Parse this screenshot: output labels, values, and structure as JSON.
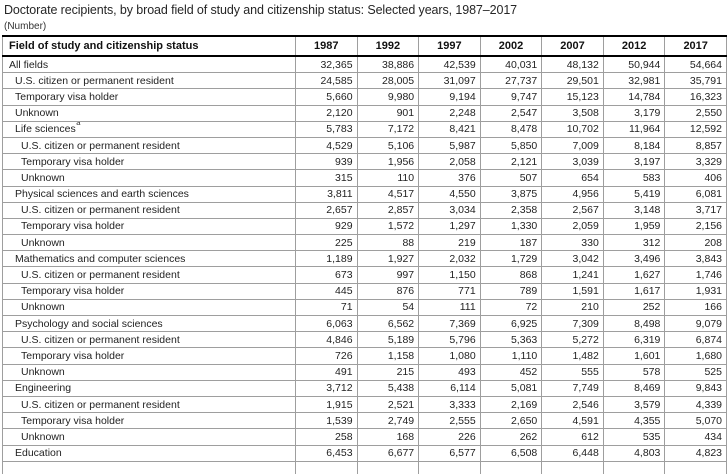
{
  "title": "Doctorate recipients, by broad field of study and citizenship status: Selected years, 1987–2017",
  "unit_label": "(Number)",
  "colors": {
    "header_border": "#000000",
    "grid_line": "#9e9e9e",
    "text": "#1f1f1f",
    "background": "#ffffff"
  },
  "table": {
    "header": [
      "Field of study and citizenship status",
      "1987",
      "1992",
      "1997",
      "2002",
      "2007",
      "2012",
      "2017"
    ],
    "rows": [
      {
        "label": "All fields",
        "indent": 0,
        "footnote_marker": "",
        "values": [
          "32,365",
          "38,886",
          "42,539",
          "40,031",
          "48,132",
          "50,944",
          "54,664"
        ]
      },
      {
        "label": "U.S. citizen or permanent resident",
        "indent": 1,
        "footnote_marker": "",
        "values": [
          "24,585",
          "28,005",
          "31,097",
          "27,737",
          "29,501",
          "32,981",
          "35,791"
        ]
      },
      {
        "label": "Temporary visa holder",
        "indent": 1,
        "footnote_marker": "",
        "values": [
          "5,660",
          "9,980",
          "9,194",
          "9,747",
          "15,123",
          "14,784",
          "16,323"
        ]
      },
      {
        "label": "Unknown",
        "indent": 1,
        "footnote_marker": "",
        "values": [
          "2,120",
          "901",
          "2,248",
          "2,547",
          "3,508",
          "3,179",
          "2,550"
        ]
      },
      {
        "label": "Life sciences",
        "indent": 1,
        "footnote_marker": "a",
        "values": [
          "5,783",
          "7,172",
          "8,421",
          "8,478",
          "10,702",
          "11,964",
          "12,592"
        ]
      },
      {
        "label": "U.S. citizen or permanent resident",
        "indent": 2,
        "footnote_marker": "",
        "values": [
          "4,529",
          "5,106",
          "5,987",
          "5,850",
          "7,009",
          "8,184",
          "8,857"
        ]
      },
      {
        "label": "Temporary visa holder",
        "indent": 2,
        "footnote_marker": "",
        "values": [
          "939",
          "1,956",
          "2,058",
          "2,121",
          "3,039",
          "3,197",
          "3,329"
        ]
      },
      {
        "label": "Unknown",
        "indent": 2,
        "footnote_marker": "",
        "values": [
          "315",
          "110",
          "376",
          "507",
          "654",
          "583",
          "406"
        ]
      },
      {
        "label": "Physical sciences and earth sciences",
        "indent": 1,
        "footnote_marker": "",
        "values": [
          "3,811",
          "4,517",
          "4,550",
          "3,875",
          "4,956",
          "5,419",
          "6,081"
        ]
      },
      {
        "label": "U.S. citizen or permanent resident",
        "indent": 2,
        "footnote_marker": "",
        "values": [
          "2,657",
          "2,857",
          "3,034",
          "2,358",
          "2,567",
          "3,148",
          "3,717"
        ]
      },
      {
        "label": "Temporary visa holder",
        "indent": 2,
        "footnote_marker": "",
        "values": [
          "929",
          "1,572",
          "1,297",
          "1,330",
          "2,059",
          "1,959",
          "2,156"
        ]
      },
      {
        "label": "Unknown",
        "indent": 2,
        "footnote_marker": "",
        "values": [
          "225",
          "88",
          "219",
          "187",
          "330",
          "312",
          "208"
        ]
      },
      {
        "label": "Mathematics and computer sciences",
        "indent": 1,
        "footnote_marker": "",
        "values": [
          "1,189",
          "1,927",
          "2,032",
          "1,729",
          "3,042",
          "3,496",
          "3,843"
        ]
      },
      {
        "label": "U.S. citizen or permanent resident",
        "indent": 2,
        "footnote_marker": "",
        "values": [
          "673",
          "997",
          "1,150",
          "868",
          "1,241",
          "1,627",
          "1,746"
        ]
      },
      {
        "label": "Temporary visa holder",
        "indent": 2,
        "footnote_marker": "",
        "values": [
          "445",
          "876",
          "771",
          "789",
          "1,591",
          "1,617",
          "1,931"
        ]
      },
      {
        "label": "Unknown",
        "indent": 2,
        "footnote_marker": "",
        "values": [
          "71",
          "54",
          "111",
          "72",
          "210",
          "252",
          "166"
        ]
      },
      {
        "label": "Psychology and social sciences",
        "indent": 1,
        "footnote_marker": "",
        "values": [
          "6,063",
          "6,562",
          "7,369",
          "6,925",
          "7,309",
          "8,498",
          "9,079"
        ]
      },
      {
        "label": "U.S. citizen or permanent resident",
        "indent": 2,
        "footnote_marker": "",
        "values": [
          "4,846",
          "5,189",
          "5,796",
          "5,363",
          "5,272",
          "6,319",
          "6,874"
        ]
      },
      {
        "label": "Temporary visa holder",
        "indent": 2,
        "footnote_marker": "",
        "values": [
          "726",
          "1,158",
          "1,080",
          "1,110",
          "1,482",
          "1,601",
          "1,680"
        ]
      },
      {
        "label": "Unknown",
        "indent": 2,
        "footnote_marker": "",
        "values": [
          "491",
          "215",
          "493",
          "452",
          "555",
          "578",
          "525"
        ]
      },
      {
        "label": "Engineering",
        "indent": 1,
        "footnote_marker": "",
        "values": [
          "3,712",
          "5,438",
          "6,114",
          "5,081",
          "7,749",
          "8,469",
          "9,843"
        ]
      },
      {
        "label": "U.S. citizen or permanent resident",
        "indent": 2,
        "footnote_marker": "",
        "values": [
          "1,915",
          "2,521",
          "3,333",
          "2,169",
          "2,546",
          "3,579",
          "4,339"
        ]
      },
      {
        "label": "Temporary visa holder",
        "indent": 2,
        "footnote_marker": "",
        "values": [
          "1,539",
          "2,749",
          "2,555",
          "2,650",
          "4,591",
          "4,355",
          "5,070"
        ]
      },
      {
        "label": "Unknown",
        "indent": 2,
        "footnote_marker": "",
        "values": [
          "258",
          "168",
          "226",
          "262",
          "612",
          "535",
          "434"
        ]
      },
      {
        "label": "Education",
        "indent": 1,
        "footnote_marker": "",
        "values": [
          "6,453",
          "6,677",
          "6,577",
          "6,508",
          "6,448",
          "4,803",
          "4,823"
        ]
      }
    ]
  }
}
